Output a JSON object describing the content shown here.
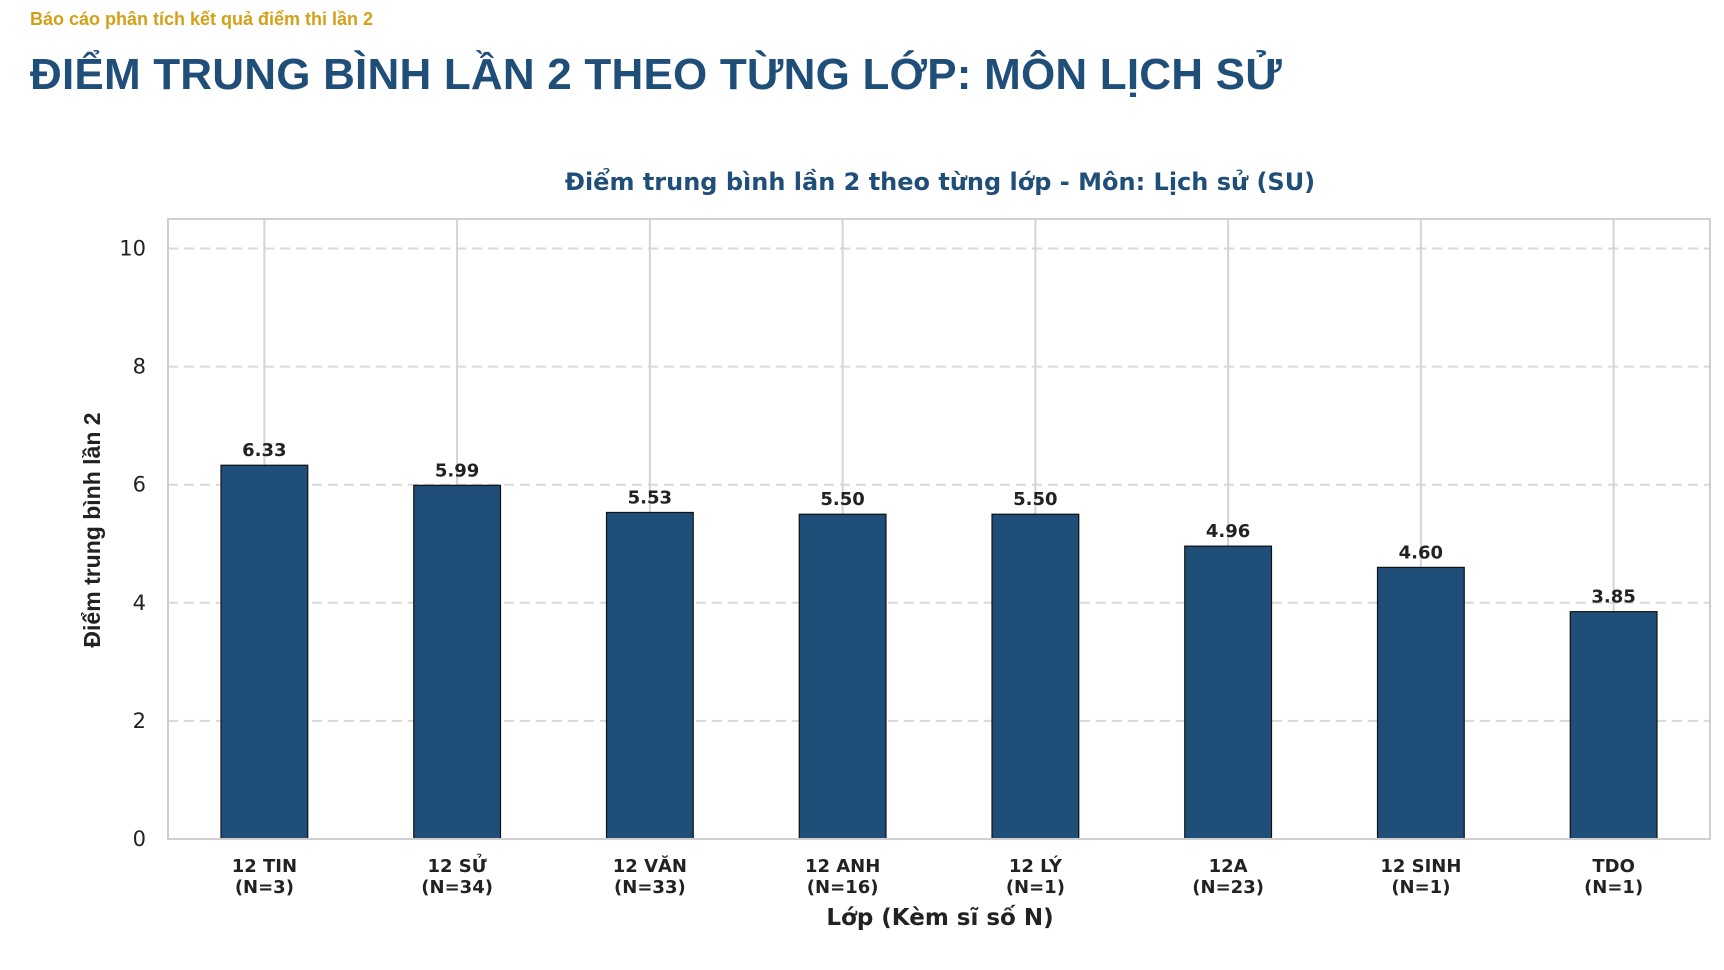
{
  "header": {
    "subtitle": "Báo cáo phân tích kết quả điểm thi lần 2",
    "title": "ĐIỂM TRUNG BÌNH LẦN 2 THEO TỪNG LỚP: MÔN LỊCH SỬ"
  },
  "colors": {
    "bar": "#1f4e79",
    "accent": "#d4a017"
  },
  "chart_data": {
    "type": "bar",
    "title": "Điểm trung bình lần 2 theo từng lớp - Môn: Lịch sử (SU)",
    "xlabel": "Lớp (Kèm sĩ số N)",
    "ylabel": "Điểm trung bình lần 2",
    "ylim": [
      0,
      10.5
    ],
    "yticks": [
      0,
      2,
      4,
      6,
      8,
      10
    ],
    "grid": true,
    "categories": [
      {
        "name": "12 TIN",
        "n": "(N=3)"
      },
      {
        "name": "12 SỬ",
        "n": "(N=34)"
      },
      {
        "name": "12 VĂN",
        "n": "(N=33)"
      },
      {
        "name": "12 ANH",
        "n": "(N=16)"
      },
      {
        "name": "12 LÝ",
        "n": "(N=1)"
      },
      {
        "name": "12A",
        "n": "(N=23)"
      },
      {
        "name": "12 SINH",
        "n": "(N=1)"
      },
      {
        "name": "TDO",
        "n": "(N=1)"
      }
    ],
    "values": [
      6.33,
      5.99,
      5.53,
      5.5,
      5.5,
      4.96,
      4.6,
      3.85
    ],
    "value_labels": [
      "6.33",
      "5.99",
      "5.53",
      "5.50",
      "5.50",
      "4.96",
      "4.60",
      "3.85"
    ]
  }
}
